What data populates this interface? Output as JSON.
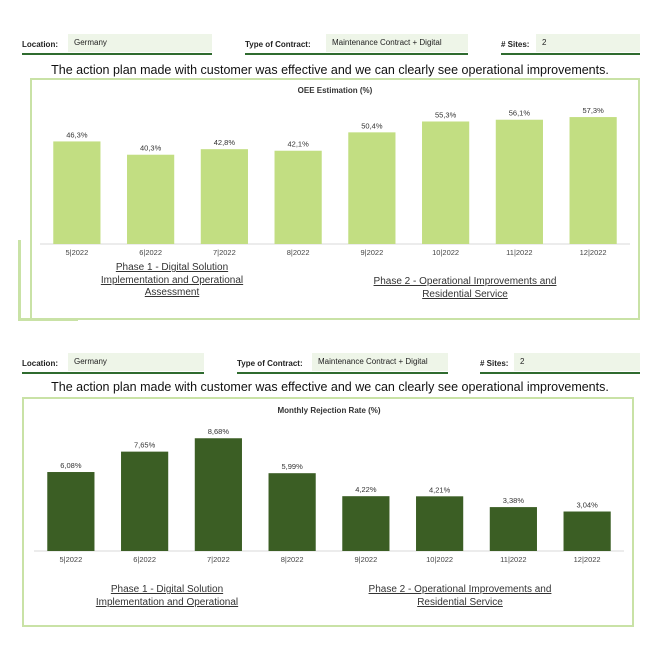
{
  "panels": [
    {
      "info": {
        "location_label": "Location:",
        "location_value": "Germany",
        "contract_label": "Type of Contract:",
        "contract_value": "Maintenance Contract + Digital",
        "sites_label": "# Sites:",
        "sites_value": "2"
      },
      "headline": "The action plan made with customer was effective and we can clearly see operational improvements.",
      "phase1": "Phase 1 - Digital Solution Implementation and Operational Assessment",
      "phase2": "Phase 2 - Operational Improvements and Residential Service",
      "colors": {
        "bar": "#c2de82"
      }
    },
    {
      "info": {
        "location_label": "Location:",
        "location_value": "Germany",
        "contract_label": "Type of Contract:",
        "contract_value": "Maintenance Contract + Digital",
        "sites_label": "# Sites:",
        "sites_value": "2"
      },
      "headline": "The action plan made with customer was effective and we can clearly see operational improvements.",
      "phase1": "Phase 1 - Digital Solution Implementation and Operational",
      "phase2": "Phase 2 - Operational Improvements and Residential Service",
      "colors": {
        "bar": "#3b5e24"
      }
    }
  ],
  "chart_data": [
    {
      "type": "bar",
      "title": "OEE Estimation (%)",
      "categories": [
        "5|2022",
        "6|2022",
        "7|2022",
        "8|2022",
        "9|2022",
        "10|2022",
        "11|2022",
        "12|2022"
      ],
      "values": [
        46.3,
        40.3,
        42.8,
        42.1,
        50.4,
        55.3,
        56.1,
        57.3
      ],
      "data_labels": [
        "46,3%",
        "40,3%",
        "42,8%",
        "42,1%",
        "50,4%",
        "55,3%",
        "56,1%",
        "57,3%"
      ],
      "ylim": [
        0,
        65
      ],
      "grid": false,
      "legend": "none"
    },
    {
      "type": "bar",
      "title": "Monthly Rejection Rate (%)",
      "categories": [
        "5|2022",
        "6|2022",
        "7|2022",
        "8|2022",
        "9|2022",
        "10|2022",
        "11|2022",
        "12|2022"
      ],
      "values": [
        6.08,
        7.65,
        8.68,
        5.99,
        4.22,
        4.21,
        3.38,
        3.04
      ],
      "data_labels": [
        "6,08%",
        "7,65%",
        "8,68%",
        "5,99%",
        "4,22%",
        "4,21%",
        "3,38%",
        "3,04%"
      ],
      "ylim": [
        0,
        9.7
      ],
      "grid": false,
      "legend": "none"
    }
  ]
}
